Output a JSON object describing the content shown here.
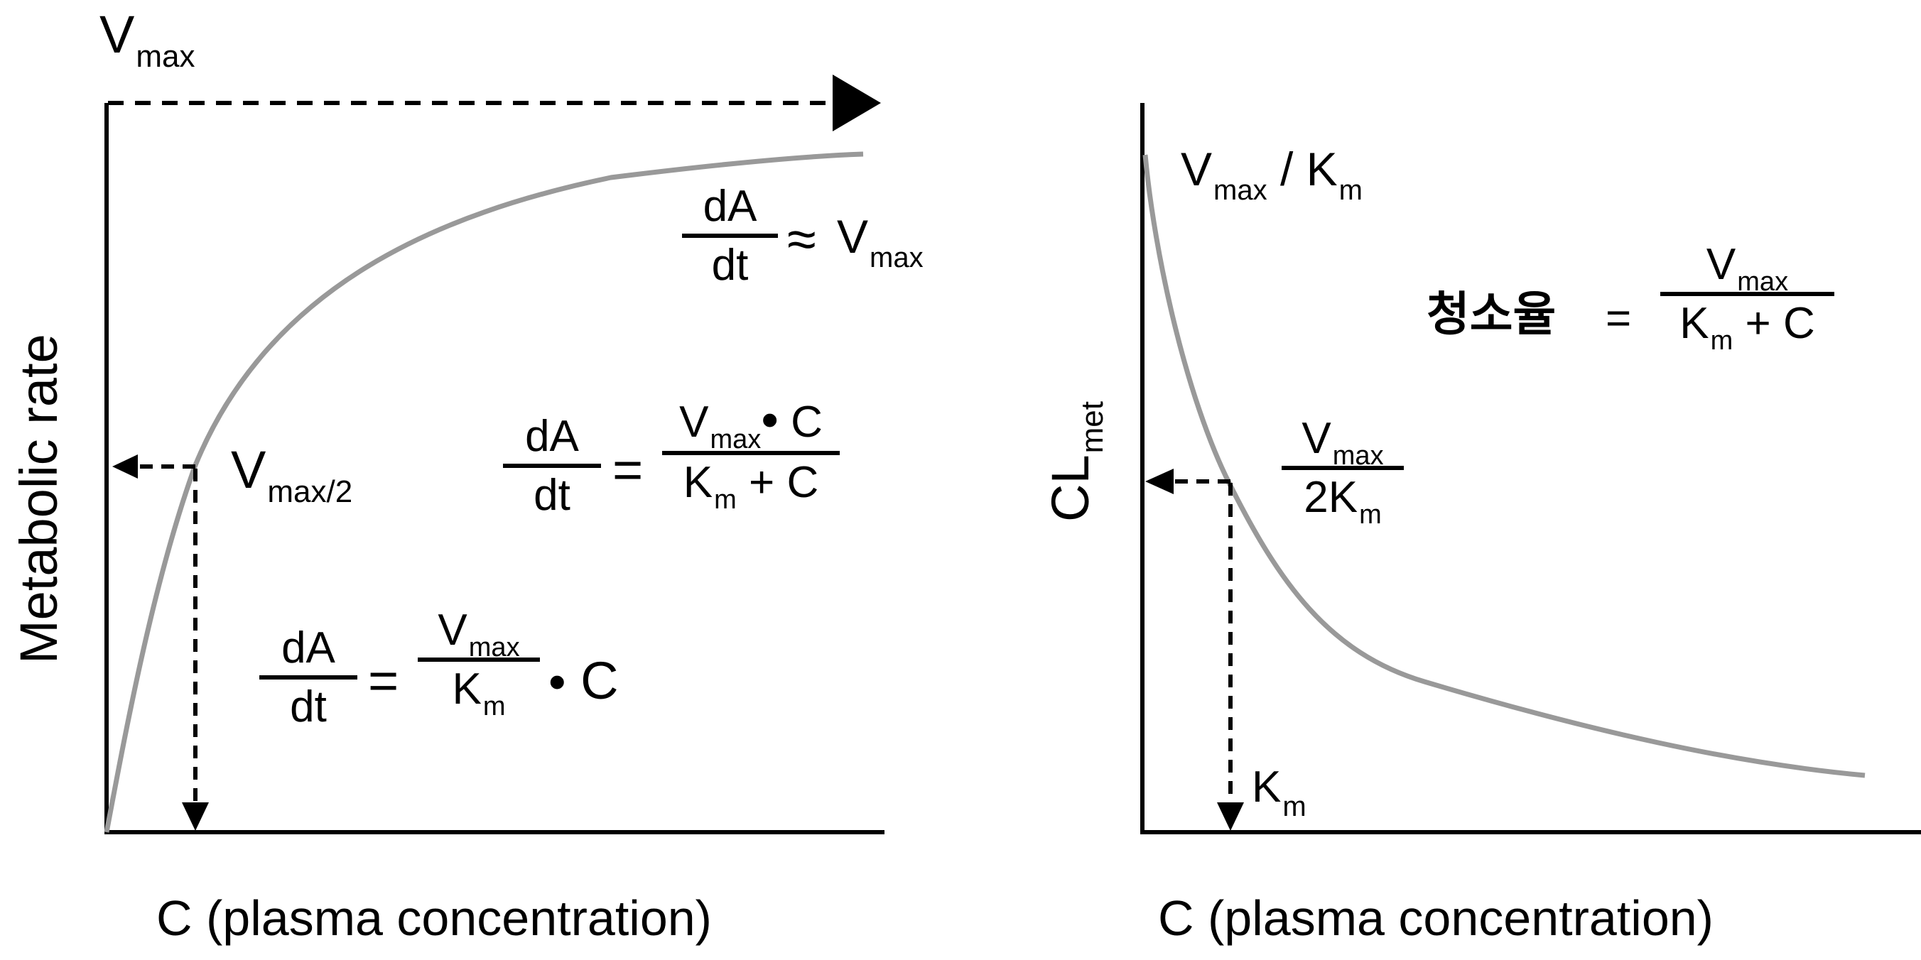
{
  "left": {
    "vmax_label": {
      "main": "V",
      "sub": "max"
    },
    "half_label": {
      "main": "V",
      "sub": "max/2"
    },
    "ylabel": "Metabolic rate",
    "xlabel": "C (plasma concentration)",
    "eq_saturation": {
      "num": "dA",
      "den": "dt",
      "op": "≈",
      "rhs_main": "V",
      "rhs_sub": "max"
    },
    "eq_michaelis": {
      "lhs_num": "dA",
      "lhs_den": "dt",
      "eq": "=",
      "num_main": "V",
      "num_sub": "max",
      "num_dot": "•",
      "num_c": "C",
      "den_main": "K",
      "den_sub": "m",
      "den_rest": " + C"
    },
    "eq_linear": {
      "lhs_num": "dA",
      "lhs_den": "dt",
      "eq": "=",
      "num_main": "V",
      "num_sub": "max",
      "den_main": "K",
      "den_sub": "m",
      "dot": "•",
      "c": "C"
    }
  },
  "right": {
    "top_label": {
      "v": "V",
      "v_sub": "max",
      "slash": " / ",
      "k": "K",
      "k_sub": "m"
    },
    "ylabel_main": "CL",
    "ylabel_sub": "met",
    "xlabel": "C (plasma concentration)",
    "km_label": {
      "main": "K",
      "sub": "m"
    },
    "half_eq": {
      "num_main": "V",
      "num_sub": "max",
      "den_main": "2K",
      "den_sub": "m"
    },
    "clearance_eq": {
      "lhs": "청소율",
      "eq": "=",
      "num_main": "V",
      "num_sub": "max",
      "den_main": "K",
      "den_sub": "m",
      "den_rest": " + C"
    }
  },
  "colors": {
    "axis": "#000000",
    "curve": "#999999",
    "arrow": "#000000"
  }
}
